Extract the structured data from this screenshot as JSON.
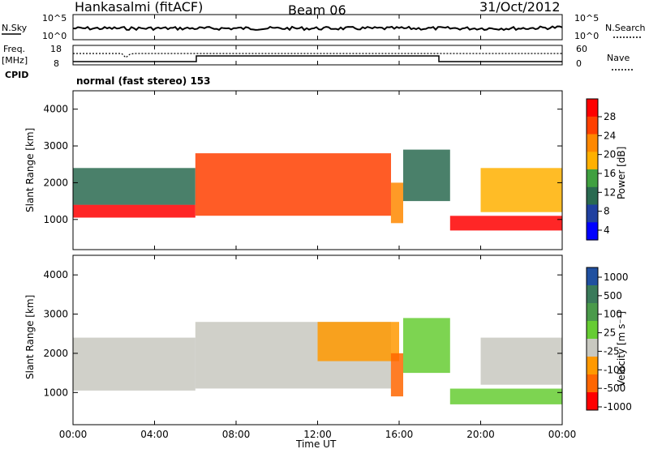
{
  "header": {
    "station": "Hankasalmi (fitACF)",
    "beam": "Beam 06",
    "date": "31/Oct/2012"
  },
  "strip_panels": {
    "nsky": {
      "label": "N.Sky",
      "ticks": [
        "10^5",
        "10^0"
      ]
    },
    "nsearch": {
      "label": "N.Search",
      "ticks": [
        "10^5",
        "10^0"
      ]
    },
    "freq": {
      "label_top": "Freq.",
      "label_unit": "[MHz]",
      "ticks": [
        "18",
        "8"
      ]
    },
    "nave": {
      "label": "Nave",
      "ticks": [
        "60",
        "0"
      ]
    },
    "cpid": {
      "label": "CPID",
      "value": "normal (fast stereo) 153"
    }
  },
  "power_panel": {
    "ylabel": "Slant Range [km]",
    "yticks": [
      "4000",
      "3000",
      "2000",
      "1000"
    ],
    "colorbar_label": "Power [dB]",
    "colorbar_ticks": [
      "28",
      "24",
      "20",
      "16",
      "12",
      "8",
      "4"
    ],
    "colors": [
      "#ff0000",
      "#ff4000",
      "#ff8800",
      "#ffb000",
      "#40a040",
      "#2a6a50",
      "#2040a0",
      "#0000ff"
    ]
  },
  "velocity_panel": {
    "ylabel": "Slant Range [km]",
    "yticks": [
      "4000",
      "3000",
      "2000",
      "1000"
    ],
    "colorbar_label": "Velocity [m s⁻¹]",
    "colorbar_ticks": [
      "1000",
      "500",
      "100",
      "25",
      "-25",
      "-100",
      "-500",
      "-1000"
    ],
    "colors": [
      "#2050a0",
      "#3a7a5a",
      "#4a9a4a",
      "#66cc33",
      "#c8c8c0",
      "#ff9900",
      "#ff6600",
      "#ff0000"
    ]
  },
  "xaxis": {
    "label": "Time UT",
    "ticks": [
      "00:00",
      "04:00",
      "08:00",
      "12:00",
      "16:00",
      "20:00",
      "00:00"
    ]
  },
  "chart_data": [
    {
      "type": "heatmap",
      "title": "Power",
      "xlabel": "Time UT",
      "ylabel": "Slant Range [km]",
      "xlim_hours": [
        0,
        24
      ],
      "ylim": [
        180,
        4500
      ],
      "colorbar": {
        "label": "Power [dB]",
        "range": [
          0,
          30
        ]
      },
      "echo_bands": [
        {
          "t_start": 0.0,
          "t_end": 6.0,
          "range_low": 1050,
          "range_high": 1400,
          "power_db": 28
        },
        {
          "t_start": 0.0,
          "t_end": 6.0,
          "range_low": 1400,
          "range_high": 2400,
          "power_db": 10
        },
        {
          "t_start": 6.0,
          "t_end": 15.6,
          "range_low": 1100,
          "range_high": 2800,
          "power_db": 26
        },
        {
          "t_start": 15.6,
          "t_end": 16.2,
          "range_low": 900,
          "range_high": 2000,
          "power_db": 22
        },
        {
          "t_start": 16.2,
          "t_end": 18.5,
          "range_low": 1500,
          "range_high": 2900,
          "power_db": 10
        },
        {
          "t_start": 18.5,
          "t_end": 24.0,
          "range_low": 700,
          "range_high": 1100,
          "power_db": 28
        },
        {
          "t_start": 20.0,
          "t_end": 24.0,
          "range_low": 1200,
          "range_high": 2400,
          "power_db": 18
        }
      ]
    },
    {
      "type": "heatmap",
      "title": "Velocity",
      "xlabel": "Time UT",
      "ylabel": "Slant Range [km]",
      "xlim_hours": [
        0,
        24
      ],
      "ylim": [
        180,
        4500
      ],
      "colorbar": {
        "label": "Velocity [m s⁻¹]",
        "range": [
          -1000,
          1000
        ]
      },
      "echo_bands": [
        {
          "t_start": 0.0,
          "t_end": 6.0,
          "range_low": 1050,
          "range_high": 2400,
          "velocity": 0
        },
        {
          "t_start": 6.0,
          "t_end": 15.6,
          "range_low": 1100,
          "range_high": 2800,
          "velocity": -50
        },
        {
          "t_start": 12.0,
          "t_end": 16.0,
          "range_low": 1800,
          "range_high": 2800,
          "velocity": -300
        },
        {
          "t_start": 15.6,
          "t_end": 16.2,
          "range_low": 900,
          "range_high": 2000,
          "velocity": -600
        },
        {
          "t_start": 16.2,
          "t_end": 18.5,
          "range_low": 1500,
          "range_high": 2900,
          "velocity": 150
        },
        {
          "t_start": 18.5,
          "t_end": 24.0,
          "range_low": 700,
          "range_high": 1100,
          "velocity": 200
        },
        {
          "t_start": 20.0,
          "t_end": 24.0,
          "range_low": 1200,
          "range_high": 2400,
          "velocity": -100
        }
      ]
    }
  ]
}
